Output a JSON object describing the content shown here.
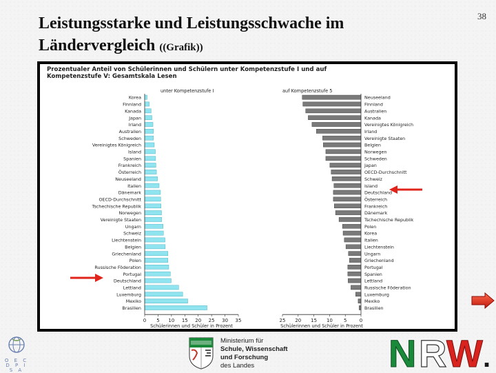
{
  "slide": {
    "title_line1": "Leistungsstarke und Leistungsschwache im",
    "title_line2": "Ländervergleich",
    "title_suffix": "(Grafik)",
    "page_number": "38"
  },
  "chart_data": {
    "type": "bar",
    "title_line1": "Prozentualer Anteil von Schülerinnen und Schülern unter Kompetenzstufe I und auf",
    "title_line2": "Kompetenzstufe V: Gesamtskala Lesen",
    "panels": [
      {
        "name": "unter Kompetenzstufe I",
        "xlabel": "Schülerinnen und Schüler in Prozent",
        "xlim": [
          0,
          35
        ],
        "ticks": [
          0,
          5,
          10,
          15,
          20,
          25,
          30,
          35
        ],
        "color": "#8fe4f0",
        "categories": [
          "Korea",
          "Finnland",
          "Kanada",
          "Japan",
          "Irland",
          "Australien",
          "Schweden",
          "Vereinigtes Königreich",
          "Island",
          "Spanien",
          "Frankreich",
          "Österreich",
          "Neuseeland",
          "Italien",
          "Dänemark",
          "OECD-Durchschnitt",
          "Tschechische Republik",
          "Norwegen",
          "Vereinigte Staaten",
          "Ungarn",
          "Schweiz",
          "Liechtenstein",
          "Belgien",
          "Griechenland",
          "Polen",
          "Russische Föderation",
          "Portugal",
          "Deutschland",
          "Lettland",
          "Luxemburg",
          "Mexiko",
          "Brasilien"
        ],
        "values": [
          0.9,
          1.7,
          2.4,
          2.7,
          3.1,
          3.3,
          3.3,
          3.6,
          4.0,
          4.1,
          4.2,
          4.4,
          4.8,
          5.4,
          5.9,
          6.0,
          6.1,
          6.3,
          6.4,
          6.9,
          7.0,
          7.6,
          7.7,
          8.7,
          8.7,
          9.0,
          9.6,
          9.9,
          12.7,
          14.2,
          16.1,
          23.3
        ]
      },
      {
        "name": "auf Kompetenzstufe 5",
        "xlabel": "Schülerinnen und Schüler in Prozent",
        "xlim": [
          0,
          25
        ],
        "ticks": [
          25,
          20,
          15,
          10,
          5,
          0
        ],
        "color": "#7a7a7a",
        "categories": [
          "Neuseeland",
          "Finnland",
          "Australien",
          "Kanada",
          "Vereinigtes Königreich",
          "Irland",
          "Vereinigte Staaten",
          "Belgien",
          "Norwegen",
          "Schweden",
          "Japan",
          "OECD-Durchschnitt",
          "Schweiz",
          "Island",
          "Deutschland",
          "Österreich",
          "Frankreich",
          "Dänemark",
          "Tschechische Republik",
          "Polen",
          "Korea",
          "Italien",
          "Liechtenstein",
          "Ungarn",
          "Griechenland",
          "Portugal",
          "Spanien",
          "Lettland",
          "Russische Föderation",
          "Luxemburg",
          "Mexiko",
          "Brasilien"
        ],
        "values": [
          18.7,
          18.5,
          17.6,
          16.8,
          15.6,
          14.2,
          12.2,
          12.0,
          11.2,
          11.2,
          9.9,
          9.5,
          9.2,
          8.6,
          8.8,
          8.8,
          8.5,
          8.1,
          7.0,
          5.9,
          5.7,
          5.3,
          4.8,
          4.0,
          3.7,
          4.2,
          4.2,
          4.1,
          3.2,
          1.7,
          0.9,
          0.6
        ]
      }
    ],
    "highlight": "Deutschland"
  },
  "footer": {
    "pisa_letters": "O E C D P I S A",
    "ministry_line1": "Ministerium für",
    "ministry_line2": "Schule, Wissenschaft",
    "ministry_line3": "und Forschung",
    "ministry_line4": "des Landes",
    "nrw_n": "N",
    "nrw_r": "R",
    "nrw_w": "W",
    "nrw_dot": "."
  },
  "colors": {
    "bar_low": "#8fe4f0",
    "bar_high": "#7a7a7a",
    "arrow": "#e0231b",
    "nrw_green": "#1a8a3a",
    "nrw_red": "#d8231f"
  },
  "icons": [
    "red-arrow-right-icon",
    "red-arrow-left-icon",
    "next-slide-arrow-icon",
    "oecd-pisa-logo-icon",
    "nrw-crest-icon"
  ]
}
